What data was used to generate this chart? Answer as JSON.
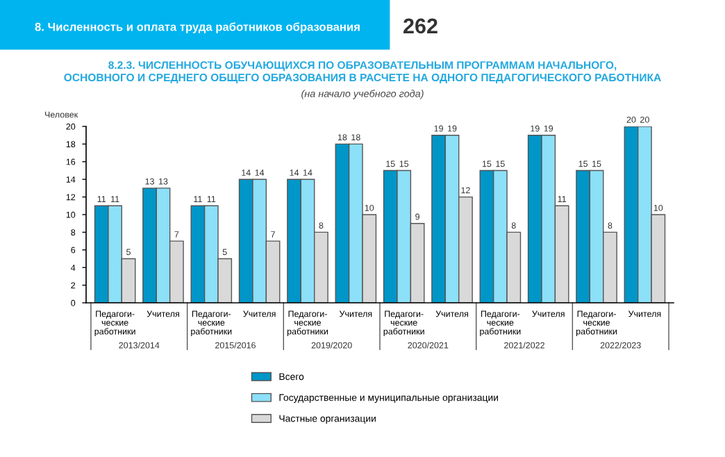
{
  "chart_data": {
    "type": "bar",
    "title": "8.2.3. ЧИСЛЕННОСТЬ ОБУЧАЮЩИХСЯ ПО ОБРАЗОВАТЕЛЬНЫМ ПРОГРАММАМ НАЧАЛЬНОГО,\nОСНОВНОГО И СРЕДНЕГО ОБЩЕГО ОБРАЗОВАНИЯ В РАСЧЕТЕ НА ОДНОГО ПЕДАГОГИЧЕСКОГО РАБОТНИКА",
    "subtitle": "(на начало учебного года)",
    "ylabel": "Человек",
    "categories": [
      "Педагоги-\nческие\nработники",
      "Учителя",
      "Педагоги-\nческие\nработники",
      "Учителя",
      "Педагоги-\nческие\nработники",
      "Учителя",
      "Педагоги-\nческие\nработники",
      "Учителя",
      "Педагоги-\nческие\nработники",
      "Учителя",
      "Педагоги-\nческие\nработники",
      "Учителя"
    ],
    "series": [
      {
        "name": "Всего",
        "color": "#0096c8",
        "values": [
          11,
          13,
          11,
          14,
          14,
          18,
          15,
          19,
          15,
          19,
          15,
          20
        ]
      },
      {
        "name": "Государственные и муниципальные организации",
        "color": "#8ce0f8",
        "values": [
          11,
          13,
          11,
          14,
          14,
          18,
          15,
          19,
          15,
          19,
          15,
          20
        ]
      },
      {
        "name": "Частные организации",
        "color": "#d9d9d9",
        "values": [
          5,
          7,
          5,
          7,
          8,
          10,
          9,
          12,
          8,
          11,
          8,
          10
        ]
      }
    ],
    "annotations": [
      "2013/2014",
      "2015/2016",
      "2019/2020",
      "2020/2021",
      "2021/2022",
      "2022/2023",
      "8. Численность и оплата труда работников образования",
      "262"
    ],
    "ylim": [
      0,
      20
    ],
    "yticks": [
      0,
      2,
      4,
      6,
      8,
      10,
      12,
      14,
      16,
      18,
      20
    ],
    "grid": false,
    "legend": "bottom",
    "data_labels": true
  }
}
